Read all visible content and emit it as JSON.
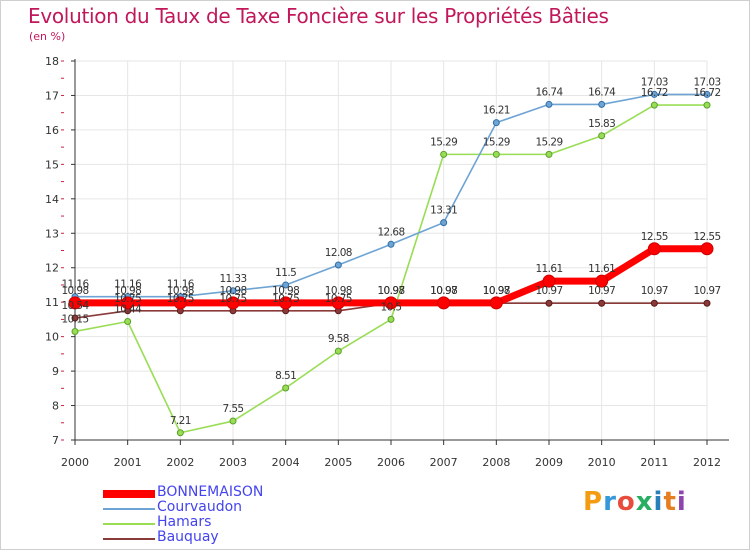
{
  "chart_data": {
    "type": "line",
    "title": "Evolution du Taux de Taxe Foncière sur les Propriétés Bâties",
    "subtitle": "(en %)",
    "xlabel": "",
    "ylabel": "(en %)",
    "x": [
      "2000",
      "2001",
      "2002",
      "2003",
      "2004",
      "2005",
      "2006",
      "2007",
      "2008",
      "2009",
      "2010",
      "2011",
      "2012"
    ],
    "ylim": [
      7,
      18
    ],
    "yticks": [
      "7",
      "8",
      "9",
      "10",
      "11",
      "12",
      "13",
      "14",
      "15",
      "16",
      "17",
      "18"
    ],
    "legend_position": "bottom-left",
    "series": [
      {
        "name": "BONNEMAISON",
        "color": "#ff0000",
        "values": [
          10.98,
          10.98,
          10.98,
          10.98,
          10.98,
          10.98,
          10.98,
          10.98,
          10.98,
          11.61,
          11.61,
          12.55,
          12.55
        ],
        "labels": [
          "10.98",
          "10.98",
          "10.98",
          "10.98",
          "10.98",
          "10.98",
          "10.98",
          "10.98",
          "10.98",
          "11.61",
          "11.61",
          "12.55",
          "12.55"
        ]
      },
      {
        "name": "Courvaudon",
        "color": "#6ea4d4",
        "values": [
          11.16,
          11.16,
          11.16,
          11.33,
          11.5,
          12.08,
          12.68,
          13.31,
          16.21,
          16.74,
          16.74,
          17.03,
          17.03
        ],
        "labels": [
          "11.16",
          "11.16",
          "11.16",
          "11.33",
          "11.5",
          "12.08",
          "12.68",
          "13.31",
          "16.21",
          "16.74",
          "16.74",
          "17.03",
          "17.03"
        ]
      },
      {
        "name": "Hamars",
        "color": "#99dd55",
        "values": [
          10.15,
          10.44,
          7.21,
          7.55,
          8.51,
          9.58,
          10.5,
          15.29,
          15.29,
          15.29,
          15.83,
          16.72,
          16.72
        ],
        "labels": [
          "10.15",
          "10.44",
          "7.21",
          "7.55",
          "8.51",
          "9.58",
          "10.5",
          "15.29",
          "15.29",
          "15.29",
          "15.83",
          "16.72",
          "16.72"
        ]
      },
      {
        "name": "Bauquay",
        "color": "#8b3a3a",
        "values": [
          10.54,
          10.75,
          10.75,
          10.75,
          10.75,
          10.75,
          10.97,
          10.97,
          10.97,
          10.97,
          10.97,
          10.97,
          10.97
        ],
        "labels": [
          "10.54",
          "10.75",
          "10.75",
          "10.75",
          "10.75",
          "10.75",
          "10.97",
          "10.97",
          "10.97",
          "10.97",
          "10.97",
          "10.97",
          "10.97"
        ]
      }
    ]
  },
  "brand": {
    "logo_text": "Proxiti",
    "letter_colors": [
      "#f39c12",
      "#3498db",
      "#e74c3c",
      "#27ae60",
      "#2980b9",
      "#e67e22",
      "#8e44ad"
    ]
  }
}
